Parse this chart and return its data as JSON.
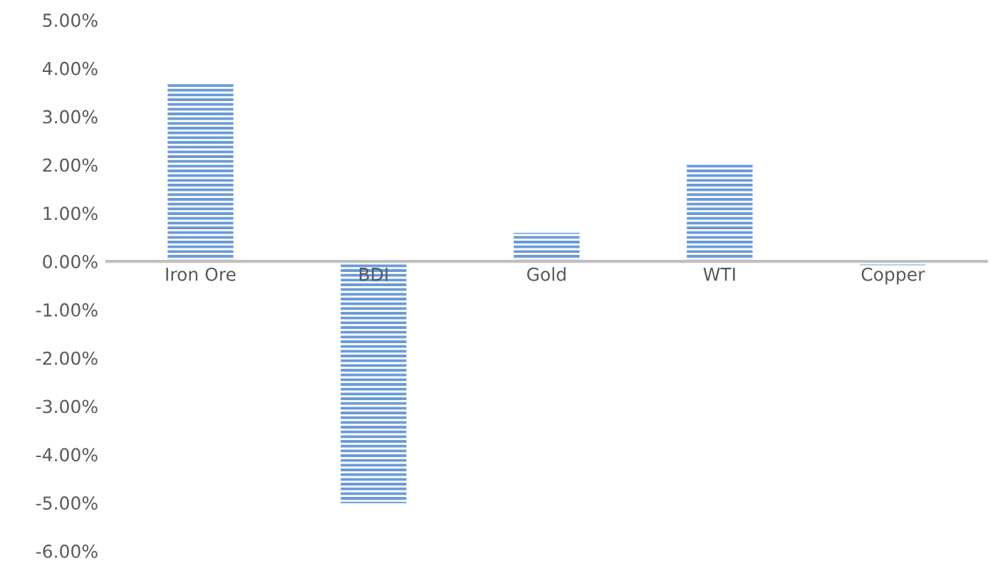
{
  "chart_data": {
    "type": "bar",
    "categories": [
      "Iron Ore",
      "BDI",
      "Gold",
      "WTI",
      "Copper"
    ],
    "values": [
      3.67,
      -5.01,
      0.59,
      2.03,
      -0.08
    ],
    "color": "#6b9bd8",
    "ylim": [
      -6,
      5
    ],
    "yticks": [
      {
        "value": -6,
        "label": "-6.00%"
      },
      {
        "value": -5,
        "label": "-5.00%"
      },
      {
        "value": -4,
        "label": "-4.00%"
      },
      {
        "value": -3,
        "label": "-3.00%"
      },
      {
        "value": -2,
        "label": "-2.00%"
      },
      {
        "value": -1,
        "label": "-1.00%"
      },
      {
        "value": 0,
        "label": "0.00%"
      },
      {
        "value": 1,
        "label": "1.00%"
      },
      {
        "value": 2,
        "label": "2.00%"
      },
      {
        "value": 3,
        "label": "3.00%"
      },
      {
        "value": 4,
        "label": "4.00%"
      },
      {
        "value": 5,
        "label": "5.00%"
      }
    ],
    "grid": false
  }
}
